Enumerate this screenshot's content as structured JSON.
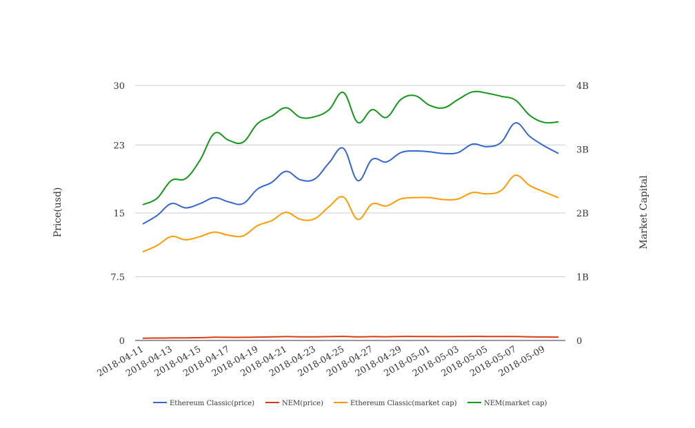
{
  "chart_data": {
    "type": "line",
    "x": [
      "2018-04-11",
      "2018-04-12",
      "2018-04-13",
      "2018-04-14",
      "2018-04-15",
      "2018-04-16",
      "2018-04-17",
      "2018-04-18",
      "2018-04-19",
      "2018-04-20",
      "2018-04-21",
      "2018-04-22",
      "2018-04-23",
      "2018-04-24",
      "2018-04-25",
      "2018-04-26",
      "2018-04-27",
      "2018-04-28",
      "2018-04-29",
      "2018-04-30",
      "2018-05-01",
      "2018-05-02",
      "2018-05-03",
      "2018-05-04",
      "2018-05-05",
      "2018-05-06",
      "2018-05-07",
      "2018-05-08",
      "2018-05-09",
      "2018-05-10"
    ],
    "x_tick_labels": [
      "2018-04-11",
      "2018-04-13",
      "2018-04-15",
      "2018-04-17",
      "2018-04-19",
      "2018-04-21",
      "2018-04-23",
      "2018-04-25",
      "2018-04-27",
      "2018-04-29",
      "2018-05-01",
      "2018-05-03",
      "2018-05-05",
      "2018-05-07",
      "2018-05-09"
    ],
    "y_left": {
      "label": "Price(usd)",
      "ylim": [
        0,
        30
      ],
      "ticks": [
        0,
        7.5,
        15,
        23,
        30
      ],
      "tick_labels": [
        "0",
        "7.5",
        "15",
        "23",
        "30"
      ]
    },
    "y_right": {
      "label": "Market Capital",
      "ylim": [
        0,
        4000000000
      ],
      "ticks": [
        0,
        1000000000,
        2000000000,
        3000000000,
        4000000000
      ],
      "tick_labels": [
        "0",
        "1B",
        "2B",
        "3B",
        "4B"
      ]
    },
    "grid": true,
    "legend_position": "bottom",
    "series": [
      {
        "name": "Ethereum Classic(price)",
        "axis": "left",
        "color": "#3366cc",
        "values": [
          13.7,
          14.7,
          16.1,
          15.6,
          16.1,
          16.8,
          16.3,
          16.1,
          17.8,
          18.6,
          19.9,
          18.9,
          19.0,
          20.9,
          22.6,
          18.8,
          21.3,
          21.0,
          22.1,
          22.3,
          22.2,
          22.0,
          22.1,
          23.1,
          22.8,
          23.3,
          25.6,
          24.0,
          22.9,
          22.0
        ]
      },
      {
        "name": "NEM(price)",
        "axis": "left",
        "color": "#dc3912",
        "values": [
          0.27,
          0.28,
          0.3,
          0.31,
          0.33,
          0.38,
          0.37,
          0.37,
          0.4,
          0.42,
          0.45,
          0.43,
          0.43,
          0.45,
          0.48,
          0.42,
          0.45,
          0.44,
          0.47,
          0.47,
          0.46,
          0.45,
          0.46,
          0.48,
          0.47,
          0.47,
          0.46,
          0.43,
          0.41,
          0.4
        ]
      },
      {
        "name": "Ethereum Classic(market cap)",
        "axis": "right",
        "color": "#ff9900",
        "values": [
          1390000000,
          1490000000,
          1630000000,
          1580000000,
          1630000000,
          1700000000,
          1650000000,
          1640000000,
          1800000000,
          1880000000,
          2010000000,
          1900000000,
          1910000000,
          2100000000,
          2250000000,
          1900000000,
          2140000000,
          2110000000,
          2220000000,
          2240000000,
          2240000000,
          2210000000,
          2220000000,
          2320000000,
          2300000000,
          2350000000,
          2590000000,
          2430000000,
          2330000000,
          2240000000
        ]
      },
      {
        "name": "NEM(market cap)",
        "axis": "right",
        "color": "#109618",
        "values": [
          2130000000,
          2230000000,
          2510000000,
          2540000000,
          2830000000,
          3250000000,
          3140000000,
          3110000000,
          3400000000,
          3520000000,
          3650000000,
          3500000000,
          3510000000,
          3620000000,
          3890000000,
          3420000000,
          3620000000,
          3500000000,
          3780000000,
          3840000000,
          3690000000,
          3650000000,
          3780000000,
          3900000000,
          3880000000,
          3830000000,
          3770000000,
          3530000000,
          3420000000,
          3430000000
        ]
      }
    ]
  }
}
